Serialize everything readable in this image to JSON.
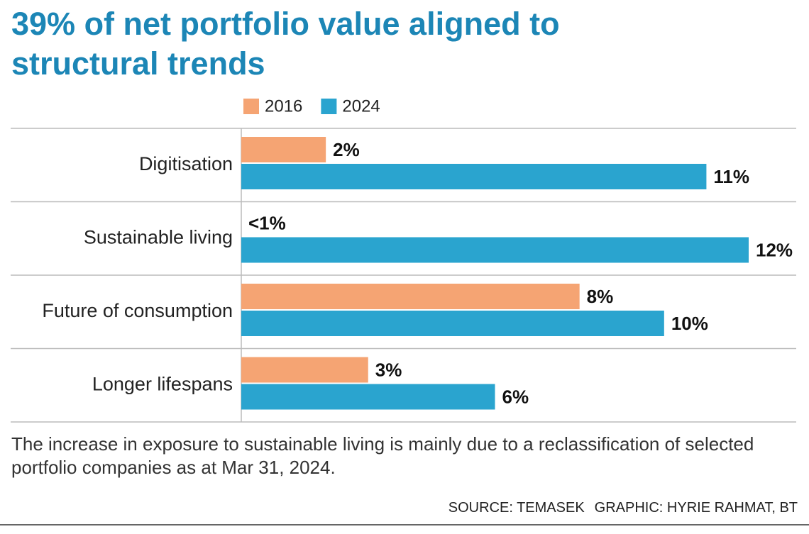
{
  "chart_data": {
    "type": "barh",
    "title": "39% of net portfolio value aligned to structural trends",
    "categories": [
      "Digitisation",
      "Sustainable living",
      "Future of consumption",
      "Longer lifespans"
    ],
    "series": [
      {
        "name": "2016",
        "color": "#f5a473",
        "values": [
          2,
          0,
          8,
          3
        ],
        "value_labels": [
          "2%",
          "<1%",
          "8%",
          "3%"
        ]
      },
      {
        "name": "2024",
        "color": "#2aa4cf",
        "values": [
          11,
          12,
          10,
          6
        ],
        "value_labels": [
          "11%",
          "12%",
          "10%",
          "6%"
        ]
      }
    ],
    "note": "The increase in exposure to sustainable living is mainly due to a reclassification of selected portfolio companies as at Mar 31, 2024.",
    "source": "SOURCE: TEMASEK",
    "credit": "GRAPHIC: HYRIE RAHMAT, BT"
  }
}
